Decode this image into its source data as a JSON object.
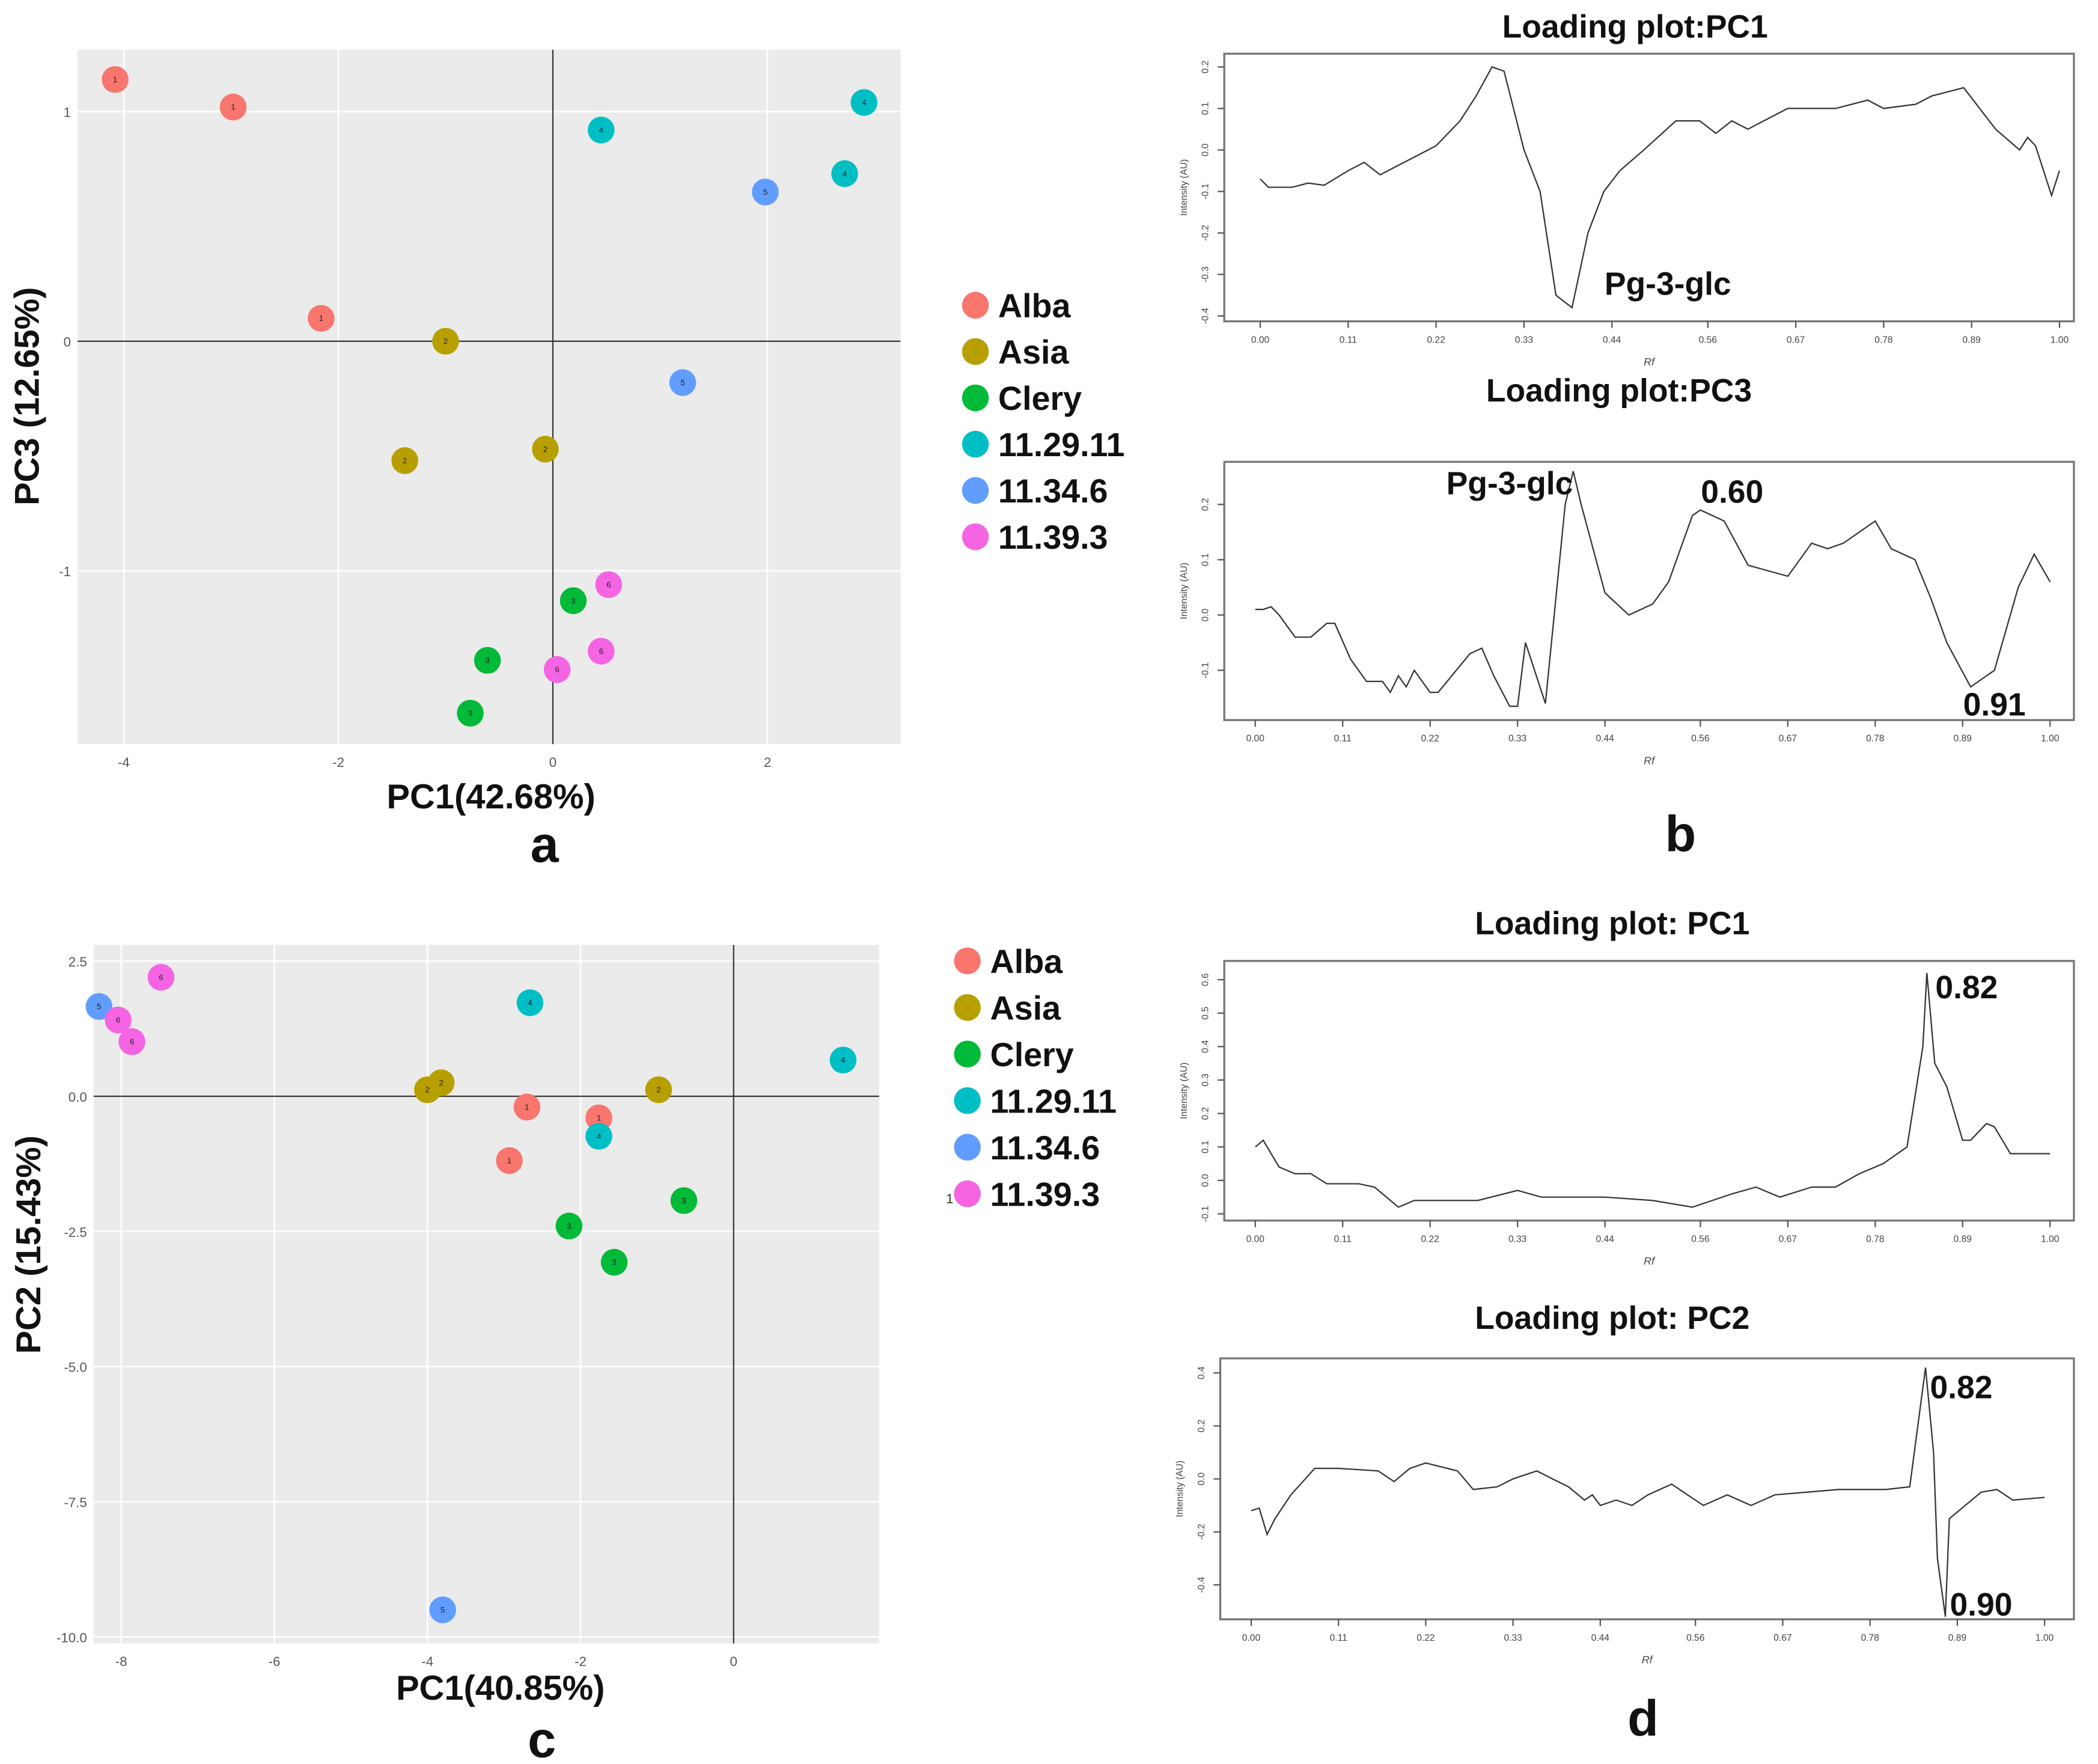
{
  "panel_labels": {
    "a": "a",
    "b": "b",
    "c": "c",
    "d": "d"
  },
  "stray_mark": "1",
  "chart_data": [
    {
      "id": "a",
      "type": "scatter",
      "xlabel": "PC1(42.68%)",
      "ylabel": "PC3 (12.65%)",
      "xlim": [
        -4.43,
        3.24
      ],
      "ylim": [
        -1.755,
        1.27
      ],
      "xticks": [
        -4,
        -2,
        0,
        2
      ],
      "xtick_labels": [
        "-4",
        "-2",
        "0",
        "2"
      ],
      "yticks": [
        -1,
        0,
        1
      ],
      "ytick_labels": [
        "-1",
        "0",
        "1"
      ],
      "grid": true,
      "legend_position": "right",
      "series": [
        {
          "name": "Alba",
          "label": "1",
          "color": "#F8766D",
          "points": [
            [
              -4.08,
              1.14
            ],
            [
              -2.98,
              1.02
            ],
            [
              -2.16,
              0.1
            ]
          ]
        },
        {
          "name": "Asia",
          "label": "2",
          "color": "#B79F00",
          "points": [
            [
              -1.0,
              0.0
            ],
            [
              -1.38,
              -0.52
            ],
            [
              -0.07,
              -0.47
            ]
          ]
        },
        {
          "name": "Clery",
          "label": "3",
          "color": "#00BA38",
          "points": [
            [
              0.19,
              -1.13
            ],
            [
              -0.61,
              -1.39
            ],
            [
              -0.77,
              -1.62
            ]
          ]
        },
        {
          "name": "11.29.11",
          "label": "4",
          "color": "#00BFC4",
          "points": [
            [
              0.45,
              0.92
            ],
            [
              2.9,
              1.04
            ],
            [
              2.72,
              0.73
            ]
          ]
        },
        {
          "name": "11.34.6",
          "label": "5",
          "color": "#619CFF",
          "points": [
            [
              1.98,
              0.65
            ],
            [
              1.21,
              -0.18
            ]
          ]
        },
        {
          "name": "11.39.3",
          "label": "6",
          "color": "#F564E3",
          "points": [
            [
              0.52,
              -1.06
            ],
            [
              0.45,
              -1.35
            ],
            [
              0.04,
              -1.43
            ]
          ]
        }
      ]
    },
    {
      "id": "c",
      "type": "scatter",
      "xlabel": "PC1(40.85%)",
      "ylabel": "PC2 (15.43%)",
      "xlim": [
        -8.36,
        1.9
      ],
      "ylim": [
        -10.12,
        2.8
      ],
      "xticks": [
        -8,
        -6,
        -4,
        -2,
        0
      ],
      "xtick_labels": [
        "-8",
        "-6",
        "-4",
        "-2",
        "0"
      ],
      "yticks": [
        2.5,
        0,
        -2.5,
        -5,
        -7.5,
        -10
      ],
      "ytick_labels": [
        "2.5",
        "0.0",
        "-2.5",
        "-5.0",
        "-7.5",
        "-10.0"
      ],
      "grid": true,
      "legend_position": "right",
      "series": [
        {
          "name": "Alba",
          "label": "1",
          "color": "#F8766D",
          "points": [
            [
              -2.7,
              -0.2
            ],
            [
              -1.76,
              -0.4
            ],
            [
              -2.93,
              -1.19
            ]
          ]
        },
        {
          "name": "Asia",
          "label": "2",
          "color": "#B79F00",
          "points": [
            [
              -4.0,
              0.12
            ],
            [
              -3.82,
              0.25
            ],
            [
              -0.98,
              0.12
            ]
          ]
        },
        {
          "name": "Clery",
          "label": "3",
          "color": "#00BA38",
          "points": [
            [
              -0.65,
              -1.93
            ],
            [
              -2.15,
              -2.4
            ],
            [
              -1.56,
              -3.07
            ]
          ]
        },
        {
          "name": "11.29.11",
          "label": "4",
          "color": "#00BFC4",
          "points": [
            [
              -2.66,
              1.73
            ],
            [
              1.43,
              0.67
            ],
            [
              -1.76,
              -0.74
            ]
          ]
        },
        {
          "name": "11.34.6",
          "label": "5",
          "color": "#619CFF",
          "points": [
            [
              -8.29,
              1.66
            ],
            [
              -3.8,
              -9.5
            ]
          ]
        },
        {
          "name": "11.39.3",
          "label": "6",
          "color": "#F564E3",
          "points": [
            [
              -7.48,
              2.2
            ],
            [
              -8.04,
              1.41
            ],
            [
              -7.86,
              1.01
            ]
          ]
        }
      ]
    },
    {
      "id": "b1",
      "type": "line",
      "title": "Loading plot:PC1",
      "xlabel": "Rf",
      "ylabel": "Intensity (AU)",
      "xlim": [
        -0.045,
        1.018
      ],
      "ylim": [
        -0.413,
        0.232
      ],
      "xticks": [
        0,
        0.11,
        0.22,
        0.33,
        0.44,
        0.56,
        0.67,
        0.78,
        0.89,
        1.0
      ],
      "xtick_labels": [
        "0.00",
        "0.11",
        "0.22",
        "0.33",
        "0.44",
        "0.56",
        "0.67",
        "0.78",
        "0.89",
        "1.00"
      ],
      "yticks": [
        0.2,
        0.1,
        0.0,
        -0.1,
        -0.2,
        -0.3,
        -0.4
      ],
      "ytick_labels": [
        "0.2",
        "0.1",
        "0.0",
        "-0.1",
        "-0.2",
        "-0.3",
        "-0.4"
      ],
      "annotations": [
        {
          "text": "Pg-3-glc",
          "x": 0.51,
          "y": -0.32
        }
      ],
      "x": [
        0,
        0.01,
        0.04,
        0.06,
        0.08,
        0.11,
        0.13,
        0.15,
        0.17,
        0.2,
        0.22,
        0.25,
        0.27,
        0.29,
        0.305,
        0.33,
        0.35,
        0.37,
        0.39,
        0.41,
        0.43,
        0.45,
        0.48,
        0.52,
        0.55,
        0.57,
        0.59,
        0.61,
        0.66,
        0.68,
        0.72,
        0.76,
        0.78,
        0.82,
        0.84,
        0.88,
        0.92,
        0.95,
        0.96,
        0.97,
        0.99,
        1.0
      ],
      "y": [
        -0.07,
        -0.09,
        -0.09,
        -0.08,
        -0.085,
        -0.05,
        -0.03,
        -0.06,
        -0.04,
        -0.01,
        0.01,
        0.07,
        0.13,
        0.2,
        0.19,
        0.0,
        -0.1,
        -0.35,
        -0.38,
        -0.2,
        -0.1,
        -0.05,
        0.0,
        0.07,
        0.07,
        0.04,
        0.07,
        0.05,
        0.1,
        0.1,
        0.1,
        0.12,
        0.1,
        0.11,
        0.13,
        0.15,
        0.05,
        0.0,
        0.03,
        0.01,
        -0.11,
        -0.05
      ]
    },
    {
      "id": "b2",
      "type": "line",
      "title": "Loading plot:PC3",
      "xlabel": "Rf",
      "ylabel": "Intensity (AU)",
      "xlim": [
        -0.039,
        1.03
      ],
      "ylim": [
        -0.19,
        0.277
      ],
      "xticks": [
        0,
        0.11,
        0.22,
        0.33,
        0.44,
        0.56,
        0.67,
        0.78,
        0.89,
        1.0
      ],
      "xtick_labels": [
        "0.00",
        "0.11",
        "0.22",
        "0.33",
        "0.44",
        "0.56",
        "0.67",
        "0.78",
        "0.89",
        "1.00"
      ],
      "yticks": [
        0.2,
        0.1,
        0.0,
        -0.1
      ],
      "ytick_labels": [
        "0.2",
        "0.1",
        "0.0",
        "-0.1"
      ],
      "annotations": [
        {
          "text": "Pg-3-glc",
          "x": 0.32,
          "y": 0.24
        },
        {
          "text": "0.60",
          "x": 0.6,
          "y": 0.225
        },
        {
          "text": "0.91",
          "x": 0.93,
          "y": -0.16
        }
      ],
      "x": [
        0,
        0.01,
        0.02,
        0.03,
        0.05,
        0.07,
        0.09,
        0.1,
        0.12,
        0.14,
        0.16,
        0.17,
        0.18,
        0.19,
        0.2,
        0.22,
        0.23,
        0.27,
        0.285,
        0.3,
        0.32,
        0.33,
        0.34,
        0.365,
        0.39,
        0.4,
        0.41,
        0.44,
        0.47,
        0.5,
        0.52,
        0.55,
        0.56,
        0.59,
        0.62,
        0.67,
        0.7,
        0.72,
        0.74,
        0.78,
        0.8,
        0.83,
        0.85,
        0.87,
        0.9,
        0.93,
        0.96,
        0.98,
        1.0
      ],
      "y": [
        0.01,
        0.01,
        0.015,
        0.0,
        -0.04,
        -0.04,
        -0.015,
        -0.015,
        -0.08,
        -0.12,
        -0.12,
        -0.14,
        -0.11,
        -0.13,
        -0.1,
        -0.14,
        -0.14,
        -0.07,
        -0.06,
        -0.11,
        -0.165,
        -0.165,
        -0.05,
        -0.16,
        0.2,
        0.26,
        0.2,
        0.04,
        0.0,
        0.02,
        0.06,
        0.18,
        0.19,
        0.17,
        0.09,
        0.07,
        0.13,
        0.12,
        0.13,
        0.17,
        0.12,
        0.1,
        0.03,
        -0.05,
        -0.13,
        -0.1,
        0.05,
        0.11,
        0.06
      ]
    },
    {
      "id": "d1",
      "type": "line",
      "title": "Loading plot: PC1",
      "xlabel": "Rf",
      "ylabel": "Intensity (AU)",
      "xlim": [
        -0.039,
        1.03
      ],
      "ylim": [
        -0.12,
        0.656
      ],
      "xticks": [
        0,
        0.11,
        0.22,
        0.33,
        0.44,
        0.56,
        0.67,
        0.78,
        0.89,
        1.0
      ],
      "xtick_labels": [
        "0.00",
        "0.11",
        "0.22",
        "0.33",
        "0.44",
        "0.56",
        "0.67",
        "0.78",
        "0.89",
        "1.00"
      ],
      "yticks": [
        0.6,
        0.5,
        0.4,
        0.3,
        0.2,
        0.1,
        0.0,
        -0.1
      ],
      "ytick_labels": [
        "0.6",
        "0.5",
        "0.4",
        "0.3",
        "0.2",
        "0.1",
        "0.0",
        "-0.1"
      ],
      "annotations": [
        {
          "text": "0.82",
          "x": 0.895,
          "y": 0.58
        }
      ],
      "x": [
        0,
        0.01,
        0.02,
        0.03,
        0.05,
        0.07,
        0.09,
        0.13,
        0.15,
        0.18,
        0.2,
        0.25,
        0.28,
        0.33,
        0.36,
        0.44,
        0.5,
        0.55,
        0.6,
        0.63,
        0.66,
        0.7,
        0.73,
        0.76,
        0.79,
        0.82,
        0.84,
        0.845,
        0.855,
        0.87,
        0.89,
        0.9,
        0.92,
        0.93,
        0.95,
        1.0
      ],
      "y": [
        0.1,
        0.12,
        0.08,
        0.04,
        0.02,
        0.02,
        -0.01,
        -0.01,
        -0.02,
        -0.08,
        -0.06,
        -0.06,
        -0.06,
        -0.03,
        -0.05,
        -0.05,
        -0.06,
        -0.08,
        -0.04,
        -0.02,
        -0.05,
        -0.02,
        -0.02,
        0.02,
        0.05,
        0.1,
        0.4,
        0.62,
        0.35,
        0.28,
        0.12,
        0.12,
        0.17,
        0.16,
        0.08,
        0.08
      ]
    },
    {
      "id": "d2",
      "type": "line",
      "title": "Loading plot: PC2",
      "xlabel": "Rf",
      "ylabel": "Intensity (AU)",
      "xlim": [
        -0.039,
        1.037
      ],
      "ylim": [
        -0.53,
        0.455
      ],
      "xticks": [
        0,
        0.11,
        0.22,
        0.33,
        0.44,
        0.56,
        0.67,
        0.78,
        0.89,
        1.0
      ],
      "xtick_labels": [
        "0.00",
        "0.11",
        "0.22",
        "0.33",
        "0.44",
        "0.56",
        "0.67",
        "0.78",
        "0.89",
        "1.00"
      ],
      "yticks": [
        0.4,
        0.2,
        0.0,
        -0.2,
        -0.4
      ],
      "ytick_labels": [
        "0.4",
        "0.2",
        "0.0",
        "-0.2",
        "-0.4"
      ],
      "annotations": [
        {
          "text": "0.82",
          "x": 0.895,
          "y": 0.35
        },
        {
          "text": "0.90",
          "x": 0.92,
          "y": -0.47
        }
      ],
      "x": [
        0,
        0.01,
        0.02,
        0.03,
        0.05,
        0.08,
        0.11,
        0.16,
        0.18,
        0.2,
        0.22,
        0.26,
        0.28,
        0.31,
        0.33,
        0.36,
        0.38,
        0.4,
        0.42,
        0.43,
        0.44,
        0.46,
        0.48,
        0.5,
        0.53,
        0.55,
        0.57,
        0.6,
        0.63,
        0.66,
        0.7,
        0.74,
        0.8,
        0.83,
        0.85,
        0.86,
        0.865,
        0.875,
        0.88,
        0.9,
        0.92,
        0.94,
        0.96,
        1.0
      ],
      "y": [
        -0.12,
        -0.11,
        -0.21,
        -0.15,
        -0.06,
        0.04,
        0.04,
        0.03,
        -0.01,
        0.04,
        0.06,
        0.03,
        -0.04,
        -0.03,
        0.0,
        0.03,
        0.0,
        -0.03,
        -0.08,
        -0.06,
        -0.1,
        -0.08,
        -0.1,
        -0.06,
        -0.02,
        -0.06,
        -0.1,
        -0.06,
        -0.1,
        -0.06,
        -0.05,
        -0.04,
        -0.04,
        -0.03,
        0.42,
        0.1,
        -0.3,
        -0.52,
        -0.15,
        -0.1,
        -0.05,
        -0.04,
        -0.08,
        -0.07
      ]
    }
  ]
}
